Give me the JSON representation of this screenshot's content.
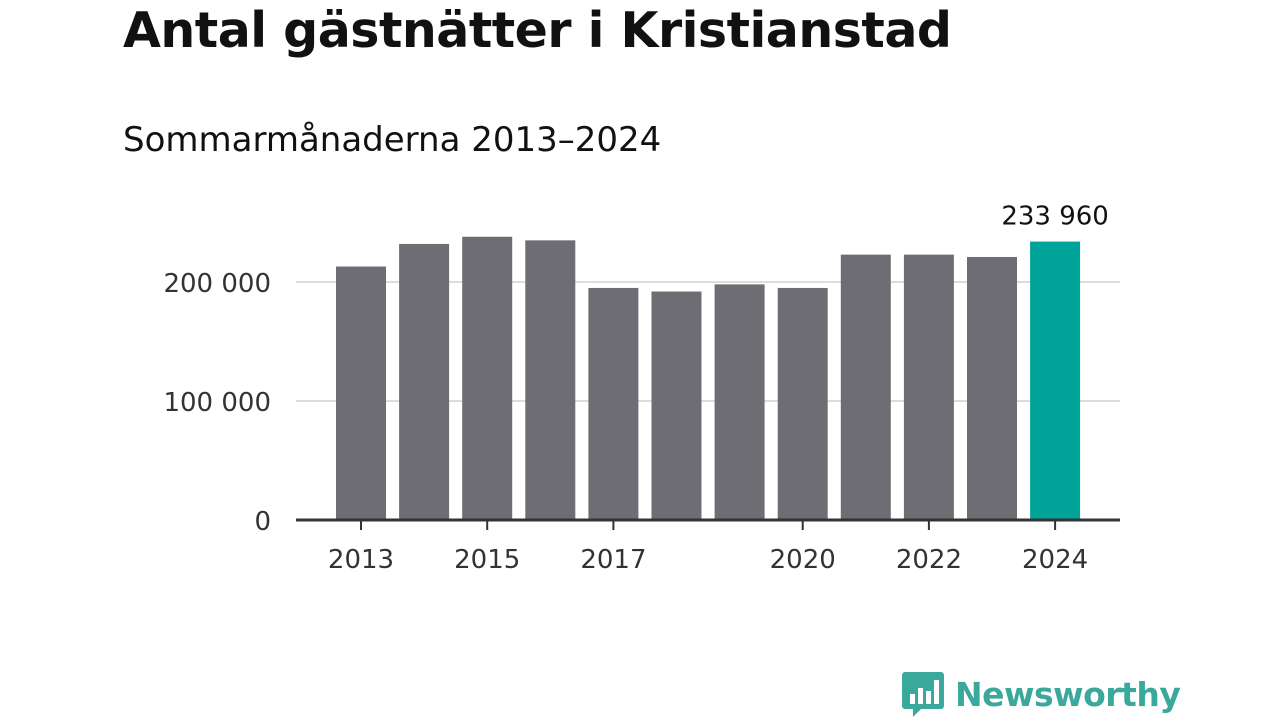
{
  "title": "Antal gästnätter i Kristianstad",
  "subtitle": "Sommarmånaderna 2013–2024",
  "brand": {
    "name": "Newsworthy",
    "color": "#3aa89a"
  },
  "colors": {
    "bar": "#6e6d73",
    "highlight": "#00a398",
    "grid": "#dddddd",
    "axis": "#333333"
  },
  "chart_data": {
    "type": "bar",
    "categories": [
      "2013",
      "2014",
      "2015",
      "2016",
      "2017",
      "2018",
      "2019",
      "2020",
      "2021",
      "2022",
      "2023",
      "2024"
    ],
    "values": [
      213000,
      232000,
      238000,
      235000,
      195000,
      192000,
      198000,
      195000,
      223000,
      223000,
      221000,
      233960
    ],
    "highlight_index": 11,
    "data_labels": {
      "11": "233 960"
    },
    "xticks": [
      "2013",
      "2015",
      "2017",
      "2020",
      "2022",
      "2024"
    ],
    "yticks": [
      0,
      100000,
      200000
    ],
    "ytick_labels": [
      "0",
      "100 000",
      "200 000"
    ],
    "ylim": [
      0,
      240000
    ],
    "grid": true,
    "xlabel": "",
    "ylabel": ""
  }
}
